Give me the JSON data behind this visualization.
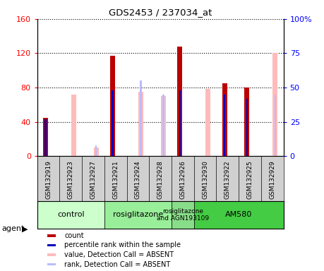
{
  "title": "GDS2453 / 237034_at",
  "samples": [
    "GSM132919",
    "GSM132923",
    "GSM132927",
    "GSM132921",
    "GSM132924",
    "GSM132928",
    "GSM132926",
    "GSM132930",
    "GSM132922",
    "GSM132925",
    "GSM132929"
  ],
  "count_values": [
    45,
    0,
    0,
    117,
    0,
    0,
    128,
    0,
    85,
    80,
    0
  ],
  "percentile_rank": [
    27,
    0,
    0,
    48,
    0,
    0,
    48,
    0,
    45,
    42,
    0
  ],
  "absent_value": [
    0,
    72,
    10,
    0,
    75,
    70,
    0,
    78,
    0,
    0,
    120
  ],
  "absent_rank": [
    0,
    0,
    8,
    0,
    55,
    45,
    0,
    0,
    0,
    0,
    45
  ],
  "ylim_left": [
    0,
    160
  ],
  "ylim_right": [
    0,
    100
  ],
  "yticks_left": [
    0,
    40,
    80,
    120,
    160
  ],
  "yticks_right": [
    0,
    25,
    50,
    75,
    100
  ],
  "groups": [
    {
      "label": "control",
      "start": 0,
      "end": 3,
      "color": "#ccffcc"
    },
    {
      "label": "rosiglitazone",
      "start": 3,
      "end": 6,
      "color": "#99ee99"
    },
    {
      "label": "rosiglitazone\nand AGN193109",
      "start": 6,
      "end": 7,
      "color": "#88dd88"
    },
    {
      "label": "AM580",
      "start": 7,
      "end": 11,
      "color": "#44cc44"
    }
  ],
  "bar_color_count": "#bb0000",
  "bar_color_rank": "#0000bb",
  "bar_color_absent_value": "#ffbbbb",
  "bar_color_absent_rank": "#bbbbff",
  "sample_box_color": "#d0d0d0",
  "legend_items": [
    {
      "label": "count",
      "color": "#bb0000"
    },
    {
      "label": "percentile rank within the sample",
      "color": "#0000bb"
    },
    {
      "label": "value, Detection Call = ABSENT",
      "color": "#ffbbbb"
    },
    {
      "label": "rank, Detection Call = ABSENT",
      "color": "#bbbbff"
    }
  ]
}
